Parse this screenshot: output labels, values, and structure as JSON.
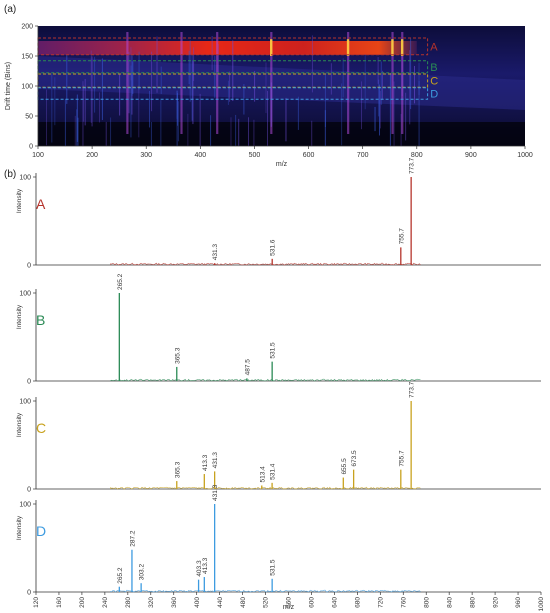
{
  "panel_labels": {
    "a": "(a)",
    "b": "(b)"
  },
  "colors": {
    "A": "#b5332b",
    "B": "#2a8a55",
    "C": "#c8a21e",
    "D": "#3d9be0"
  },
  "chart_data": [
    {
      "type": "heatmap",
      "xlabel": "m/z",
      "ylabel": "Drift time (Bins)",
      "xlim": [
        100,
        1000
      ],
      "ylim": [
        0,
        200
      ],
      "xticks": [
        100,
        200,
        300,
        400,
        500,
        600,
        700,
        800,
        900,
        1000
      ],
      "yticks": [
        0,
        50,
        100,
        150,
        200
      ],
      "regions": [
        {
          "label": "A",
          "drift_range": [
            152,
            180
          ]
        },
        {
          "label": "B",
          "drift_range": [
            122,
            142
          ]
        },
        {
          "label": "C",
          "drift_range": [
            98,
            120
          ]
        },
        {
          "label": "D",
          "drift_range": [
            78,
            97
          ]
        }
      ]
    },
    {
      "type": "bar",
      "label": "A",
      "ylabel": "Intensity",
      "ylim": [
        0,
        100
      ],
      "yticks": [
        0,
        100
      ],
      "peaks": [
        {
          "mz": 431.3,
          "value": 2,
          "label": "431.3"
        },
        {
          "mz": 531.6,
          "value": 7,
          "label": "531.6"
        },
        {
          "mz": 755.7,
          "value": 20,
          "label": "755.7"
        },
        {
          "mz": 773.7,
          "value": 100,
          "label": "773.7"
        }
      ]
    },
    {
      "type": "bar",
      "label": "B",
      "ylabel": "Intensity",
      "ylim": [
        0,
        100
      ],
      "yticks": [
        0,
        100
      ],
      "peaks": [
        {
          "mz": 265.2,
          "value": 100,
          "label": "265.2"
        },
        {
          "mz": 365.3,
          "value": 16,
          "label": "365.3"
        },
        {
          "mz": 487.5,
          "value": 3,
          "label": "487.5"
        },
        {
          "mz": 531.5,
          "value": 22,
          "label": "531.5"
        }
      ]
    },
    {
      "type": "bar",
      "label": "C",
      "ylabel": "Intensity",
      "ylim": [
        0,
        100
      ],
      "yticks": [
        0,
        100
      ],
      "peaks": [
        {
          "mz": 365.3,
          "value": 9,
          "label": "365.3"
        },
        {
          "mz": 413.3,
          "value": 17,
          "label": "413.3"
        },
        {
          "mz": 431.3,
          "value": 20,
          "label": "431.3"
        },
        {
          "mz": 513.4,
          "value": 4,
          "label": "513.4"
        },
        {
          "mz": 531.4,
          "value": 7,
          "label": "531.4"
        },
        {
          "mz": 655.5,
          "value": 13,
          "label": "655.5"
        },
        {
          "mz": 673.5,
          "value": 22,
          "label": "673.5"
        },
        {
          "mz": 755.7,
          "value": 22,
          "label": "755.7"
        },
        {
          "mz": 773.7,
          "value": 100,
          "label": "773.7"
        }
      ]
    },
    {
      "type": "bar",
      "label": "D",
      "ylabel": "Intensity",
      "xlabel": "m/z",
      "ylim": [
        0,
        100
      ],
      "yticks": [
        0,
        100
      ],
      "xlim": [
        120,
        1000
      ],
      "xticks": [
        120,
        160,
        200,
        240,
        280,
        320,
        360,
        400,
        440,
        480,
        520,
        560,
        600,
        640,
        680,
        720,
        760,
        800,
        840,
        880,
        920,
        960,
        1000
      ],
      "peaks": [
        {
          "mz": 265.2,
          "value": 6,
          "label": "265.2"
        },
        {
          "mz": 287.2,
          "value": 48,
          "label": "287.2"
        },
        {
          "mz": 303.2,
          "value": 10,
          "label": "303.2"
        },
        {
          "mz": 403.3,
          "value": 14,
          "label": "403.3"
        },
        {
          "mz": 413.3,
          "value": 17,
          "label": "413.3"
        },
        {
          "mz": 431.3,
          "value": 100,
          "label": "431.3"
        },
        {
          "mz": 531.5,
          "value": 15,
          "label": "531.5"
        }
      ]
    }
  ]
}
